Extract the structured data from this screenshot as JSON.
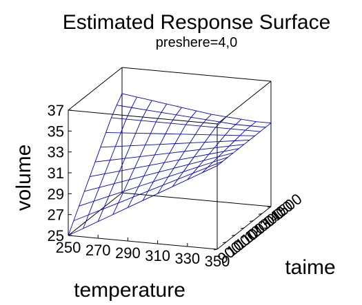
{
  "chart_data": {
    "type": "surface",
    "title": "Estimated Response Surface",
    "subtitle": "preshere=4,0",
    "xlabel": "temperature",
    "ylabel": "taime",
    "zlabel": "volume",
    "x_ticks": [
      "250",
      "270",
      "290",
      "310",
      "330",
      "350"
    ],
    "y_ticks": [
      "900",
      "1000",
      "1100",
      "1200",
      "1300",
      "1400",
      "1500"
    ],
    "z_ticks": [
      "25",
      "27",
      "29",
      "31",
      "33",
      "35",
      "37"
    ],
    "xlim": [
      250,
      350
    ],
    "ylim": [
      900,
      1500
    ],
    "zlim": [
      25,
      37
    ],
    "grid_x": [
      250,
      260,
      270,
      280,
      290,
      300,
      310,
      320,
      330,
      340,
      350
    ],
    "grid_y": [
      900,
      960,
      1020,
      1080,
      1140,
      1200,
      1260,
      1320,
      1380,
      1440,
      1500
    ],
    "z_values": [
      [
        25.0,
        25.8,
        26.6,
        27.4,
        28.2,
        29.0,
        29.8,
        30.6,
        31.4,
        32.2,
        33.0
      ],
      [
        26.0,
        26.7,
        27.4,
        28.1,
        28.8,
        29.5,
        30.2,
        30.9,
        31.6,
        32.3,
        33.0
      ],
      [
        27.0,
        27.6,
        28.2,
        28.8,
        29.4,
        30.0,
        30.6,
        31.2,
        31.8,
        32.4,
        33.0
      ],
      [
        28.0,
        28.5,
        29.0,
        29.5,
        30.0,
        30.5,
        31.0,
        31.5,
        32.0,
        32.5,
        33.0
      ],
      [
        29.0,
        29.4,
        29.8,
        30.2,
        30.6,
        31.0,
        31.4,
        31.8,
        32.2,
        32.6,
        33.0
      ],
      [
        30.0,
        30.3,
        30.6,
        30.9,
        31.2,
        31.5,
        31.8,
        32.1,
        32.4,
        32.7,
        33.0
      ],
      [
        31.0,
        31.2,
        31.4,
        31.6,
        31.8,
        32.0,
        32.2,
        32.4,
        32.6,
        32.8,
        33.0
      ],
      [
        32.0,
        32.1,
        32.2,
        32.3,
        32.4,
        32.5,
        32.6,
        32.7,
        32.8,
        32.9,
        33.0
      ],
      [
        33.0,
        33.0,
        33.0,
        33.0,
        33.0,
        33.0,
        33.0,
        33.0,
        33.0,
        33.0,
        33.0
      ],
      [
        33.8,
        33.7,
        33.6,
        33.5,
        33.4,
        33.3,
        33.2,
        33.1,
        33.0,
        33.0,
        33.0
      ],
      [
        34.5,
        34.3,
        34.1,
        33.9,
        33.7,
        33.5,
        33.3,
        33.2,
        33.1,
        33.0,
        33.0
      ]
    ],
    "grid": false,
    "mesh_color": "#0000cc"
  }
}
